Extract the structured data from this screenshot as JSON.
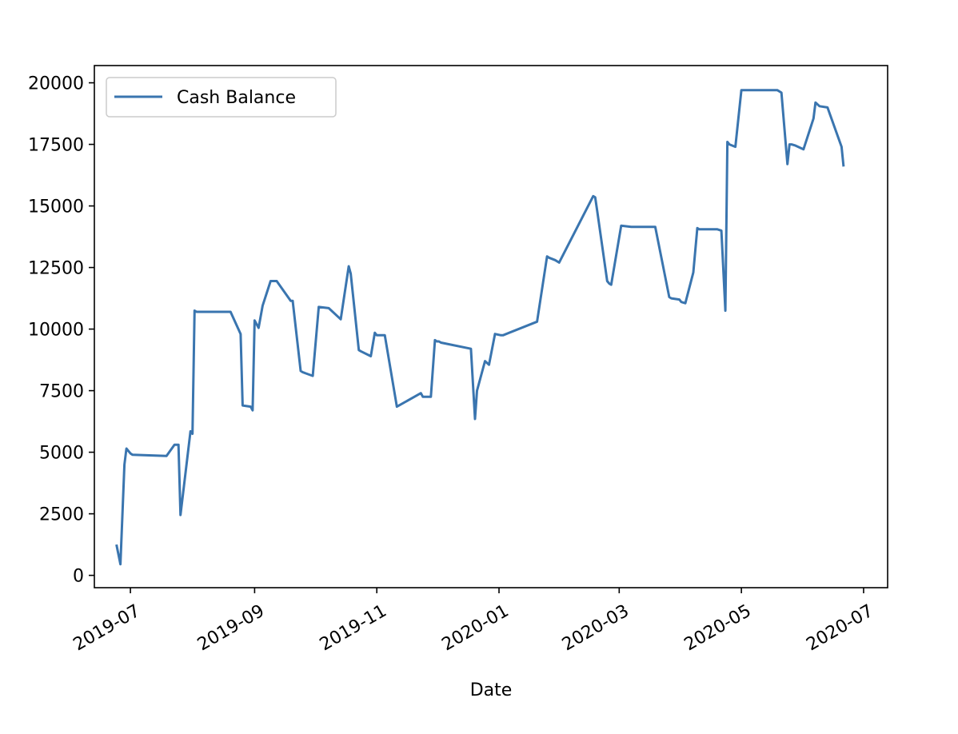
{
  "chart_data": {
    "type": "line",
    "title": "",
    "xlabel": "Date",
    "ylabel": "",
    "x_axis_type": "date",
    "xlim": [
      "2019-06-13",
      "2020-07-13"
    ],
    "ylim": [
      -500,
      20700
    ],
    "x_ticks": [
      "2019-07-01",
      "2019-09-01",
      "2019-11-01",
      "2020-01-01",
      "2020-03-01",
      "2020-05-01",
      "2020-07-01"
    ],
    "x_tick_labels": [
      "2019-07",
      "2019-09",
      "2019-11",
      "2020-01",
      "2020-03",
      "2020-05",
      "2020-07"
    ],
    "y_ticks": [
      0,
      2500,
      5000,
      7500,
      10000,
      12500,
      15000,
      17500,
      20000
    ],
    "y_tick_labels": [
      "0",
      "2500",
      "5000",
      "7500",
      "10000",
      "12500",
      "15000",
      "17500",
      "20000"
    ],
    "grid": false,
    "legend_position": "top-left",
    "series": [
      {
        "name": "Cash Balance",
        "color": "#3a75af",
        "x": [
          "2019-06-24",
          "2019-06-26",
          "2019-06-28",
          "2019-06-29",
          "2019-07-01",
          "2019-07-02",
          "2019-07-19",
          "2019-07-23",
          "2019-07-25",
          "2019-07-26",
          "2019-07-31",
          "2019-08-01",
          "2019-08-02",
          "2019-08-03",
          "2019-08-20",
          "2019-08-25",
          "2019-08-26",
          "2019-08-30",
          "2019-08-31",
          "2019-09-01",
          "2019-09-03",
          "2019-09-05",
          "2019-09-09",
          "2019-09-12",
          "2019-09-19",
          "2019-09-20",
          "2019-09-24",
          "2019-09-25",
          "2019-09-30",
          "2019-10-03",
          "2019-10-08",
          "2019-10-14",
          "2019-10-18",
          "2019-10-19",
          "2019-10-23",
          "2019-10-24",
          "2019-10-29",
          "2019-10-31",
          "2019-11-01",
          "2019-11-04",
          "2019-11-05",
          "2019-11-11",
          "2019-11-23",
          "2019-11-24",
          "2019-11-28",
          "2019-11-30",
          "2019-12-01",
          "2019-12-02",
          "2019-12-03",
          "2019-12-18",
          "2019-12-20",
          "2019-12-21",
          "2019-12-25",
          "2019-12-27",
          "2019-12-30",
          "2020-01-02",
          "2020-01-03",
          "2020-01-20",
          "2020-01-25",
          "2020-01-26",
          "2020-01-29",
          "2020-01-31",
          "2020-02-17",
          "2020-02-18",
          "2020-02-19",
          "2020-02-24",
          "2020-02-25",
          "2020-02-26",
          "2020-03-02",
          "2020-03-07",
          "2020-03-10",
          "2020-03-19",
          "2020-03-26",
          "2020-03-27",
          "2020-03-31",
          "2020-04-01",
          "2020-04-03",
          "2020-04-07",
          "2020-04-09",
          "2020-04-10",
          "2020-04-19",
          "2020-04-21",
          "2020-04-23",
          "2020-04-24",
          "2020-04-25",
          "2020-04-28",
          "2020-05-01",
          "2020-05-05",
          "2020-05-19",
          "2020-05-21",
          "2020-05-24",
          "2020-05-25",
          "2020-05-26",
          "2020-05-28",
          "2020-06-01",
          "2020-06-06",
          "2020-06-07",
          "2020-06-09",
          "2020-06-13",
          "2020-06-20",
          "2020-06-21"
        ],
        "y": [
          1250,
          450,
          4500,
          5150,
          4950,
          4900,
          4850,
          5300,
          5300,
          2450,
          5850,
          5750,
          10750,
          10700,
          10700,
          9800,
          6900,
          6850,
          6700,
          10350,
          10050,
          10950,
          11950,
          11950,
          11150,
          11150,
          8300,
          8250,
          8100,
          10900,
          10850,
          10400,
          12550,
          12250,
          9150,
          9100,
          8900,
          9850,
          9750,
          9750,
          9750,
          6850,
          7400,
          7250,
          7250,
          9550,
          9500,
          9500,
          9450,
          9200,
          6350,
          7500,
          8700,
          8550,
          9800,
          9750,
          9750,
          10300,
          12950,
          12900,
          12800,
          12700,
          15400,
          15350,
          14800,
          11950,
          11850,
          11800,
          14200,
          14150,
          14150,
          14150,
          11300,
          11250,
          11200,
          11100,
          11050,
          12300,
          14100,
          14050,
          14050,
          14000,
          10750,
          17600,
          17500,
          17400,
          19700,
          19700,
          19700,
          19600,
          16700,
          17500,
          17500,
          17450,
          17300,
          18550,
          19200,
          19050,
          19000,
          17400,
          16600
        ]
      }
    ]
  }
}
